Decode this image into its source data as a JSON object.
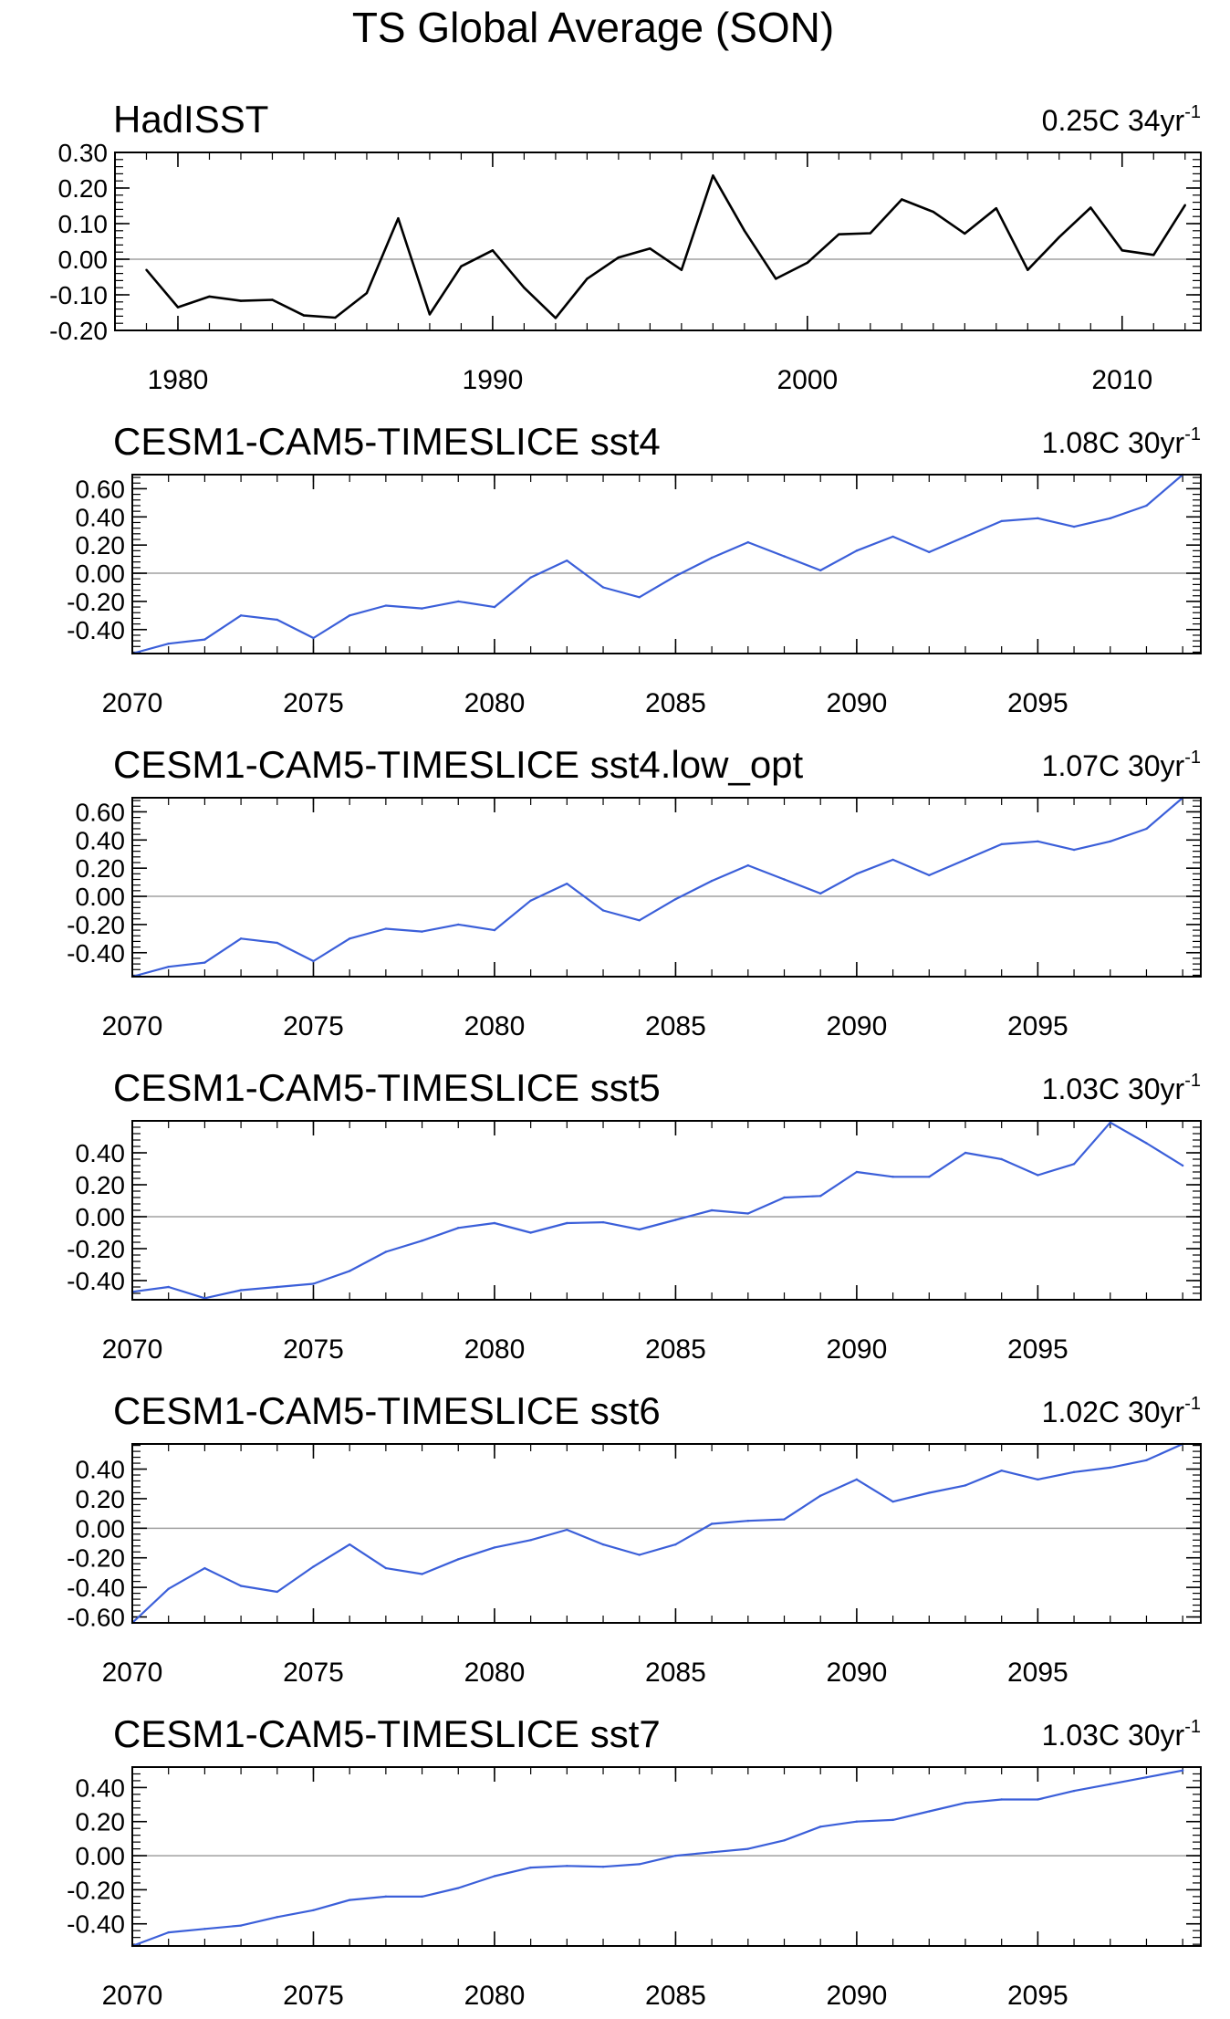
{
  "figure_title": "TS Global Average (SON)",
  "colors": {
    "obs_line": "#000000",
    "model_line": "#3b5fd9",
    "axis": "#000000",
    "zero_line": "#a0a0a0"
  },
  "chart_data": [
    {
      "type": "line",
      "title": "HadISST",
      "trend_value": "0.25C 34yr",
      "trend_exp": "-1",
      "color_key": "obs_line",
      "xlim": [
        1978.0,
        2012.5
      ],
      "ylim": [
        -0.2,
        0.3
      ],
      "yticks": [
        -0.2,
        -0.1,
        0.0,
        0.1,
        0.2,
        0.3
      ],
      "ytick_labels": [
        "-0.20",
        "-0.10",
        "0.00",
        "0.10",
        "0.20",
        "0.30"
      ],
      "xticks": [
        1980,
        1990,
        2000,
        2010
      ],
      "xtick_labels": [
        "1980",
        "1990",
        "2000",
        "2010"
      ],
      "x": [
        1979,
        1980,
        1981,
        1982,
        1983,
        1984,
        1985,
        1986,
        1987,
        1988,
        1989,
        1990,
        1991,
        1992,
        1993,
        1994,
        1995,
        1996,
        1997,
        1998,
        1999,
        2000,
        2001,
        2002,
        2003,
        2004,
        2005,
        2006,
        2007,
        2008,
        2009,
        2010,
        2011,
        2012
      ],
      "y": [
        -0.03,
        -0.135,
        -0.105,
        -0.117,
        -0.114,
        -0.158,
        -0.164,
        -0.095,
        0.115,
        -0.155,
        -0.02,
        0.025,
        -0.08,
        -0.165,
        -0.055,
        0.005,
        0.03,
        -0.03,
        0.235,
        0.08,
        -0.055,
        -0.01,
        0.07,
        0.073,
        0.168,
        0.133,
        0.072,
        0.143,
        -0.03,
        0.062,
        0.145,
        0.025,
        0.012,
        0.152
      ]
    },
    {
      "type": "line",
      "title": "CESM1-CAM5-TIMESLICE sst4",
      "trend_value": "1.08C 30yr",
      "trend_exp": "-1",
      "color_key": "model_line",
      "xlim": [
        2070,
        2099.5
      ],
      "ylim": [
        -0.57,
        0.7
      ],
      "yticks": [
        -0.4,
        -0.2,
        0.0,
        0.2,
        0.4,
        0.6
      ],
      "ytick_labels": [
        "-0.40",
        "-0.20",
        "0.00",
        "0.20",
        "0.40",
        "0.60"
      ],
      "xticks": [
        2070,
        2075,
        2080,
        2085,
        2090,
        2095
      ],
      "xtick_labels": [
        "2070",
        "2075",
        "2080",
        "2085",
        "2090",
        "2095"
      ],
      "x": [
        2070,
        2071,
        2072,
        2073,
        2074,
        2075,
        2076,
        2077,
        2078,
        2079,
        2080,
        2081,
        2082,
        2083,
        2084,
        2085,
        2086,
        2087,
        2088,
        2089,
        2090,
        2091,
        2092,
        2093,
        2094,
        2095,
        2096,
        2097,
        2098,
        2099
      ],
      "y": [
        -0.57,
        -0.5,
        -0.47,
        -0.3,
        -0.33,
        -0.46,
        -0.3,
        -0.23,
        -0.25,
        -0.2,
        -0.24,
        -0.03,
        0.09,
        -0.1,
        -0.17,
        -0.02,
        0.11,
        0.22,
        0.12,
        0.02,
        0.16,
        0.26,
        0.15,
        0.26,
        0.37,
        0.39,
        0.33,
        0.39,
        0.48,
        0.7
      ]
    },
    {
      "type": "line",
      "title": "CESM1-CAM5-TIMESLICE sst4.low_opt",
      "trend_value": "1.07C 30yr",
      "trend_exp": "-1",
      "color_key": "model_line",
      "xlim": [
        2070,
        2099.5
      ],
      "ylim": [
        -0.57,
        0.7
      ],
      "yticks": [
        -0.4,
        -0.2,
        0.0,
        0.2,
        0.4,
        0.6
      ],
      "ytick_labels": [
        "-0.40",
        "-0.20",
        "0.00",
        "0.20",
        "0.40",
        "0.60"
      ],
      "xticks": [
        2070,
        2075,
        2080,
        2085,
        2090,
        2095
      ],
      "xtick_labels": [
        "2070",
        "2075",
        "2080",
        "2085",
        "2090",
        "2095"
      ],
      "x": [
        2070,
        2071,
        2072,
        2073,
        2074,
        2075,
        2076,
        2077,
        2078,
        2079,
        2080,
        2081,
        2082,
        2083,
        2084,
        2085,
        2086,
        2087,
        2088,
        2089,
        2090,
        2091,
        2092,
        2093,
        2094,
        2095,
        2096,
        2097,
        2098,
        2099
      ],
      "y": [
        -0.57,
        -0.5,
        -0.47,
        -0.3,
        -0.33,
        -0.46,
        -0.3,
        -0.23,
        -0.25,
        -0.2,
        -0.24,
        -0.03,
        0.09,
        -0.1,
        -0.17,
        -0.02,
        0.11,
        0.22,
        0.12,
        0.02,
        0.16,
        0.26,
        0.15,
        0.26,
        0.37,
        0.39,
        0.33,
        0.39,
        0.48,
        0.7
      ]
    },
    {
      "type": "line",
      "title": "CESM1-CAM5-TIMESLICE sst5",
      "trend_value": "1.03C 30yr",
      "trend_exp": "-1",
      "color_key": "model_line",
      "xlim": [
        2070,
        2099.5
      ],
      "ylim": [
        -0.52,
        0.6
      ],
      "yticks": [
        -0.4,
        -0.2,
        0.0,
        0.2,
        0.4
      ],
      "ytick_labels": [
        "-0.40",
        "-0.20",
        "0.00",
        "0.20",
        "0.40"
      ],
      "xticks": [
        2070,
        2075,
        2080,
        2085,
        2090,
        2095
      ],
      "xtick_labels": [
        "2070",
        "2075",
        "2080",
        "2085",
        "2090",
        "2095"
      ],
      "x": [
        2070,
        2071,
        2072,
        2073,
        2074,
        2075,
        2076,
        2077,
        2078,
        2079,
        2080,
        2081,
        2082,
        2083,
        2084,
        2085,
        2086,
        2087,
        2088,
        2089,
        2090,
        2091,
        2092,
        2093,
        2094,
        2095,
        2096,
        2097,
        2098,
        2099
      ],
      "y": [
        -0.47,
        -0.44,
        -0.51,
        -0.46,
        -0.44,
        -0.42,
        -0.34,
        -0.22,
        -0.15,
        -0.07,
        -0.04,
        -0.1,
        -0.04,
        -0.035,
        -0.08,
        -0.02,
        0.04,
        0.02,
        0.12,
        0.13,
        0.28,
        0.25,
        0.25,
        0.4,
        0.36,
        0.26,
        0.33,
        0.59,
        0.46,
        0.32
      ]
    },
    {
      "type": "line",
      "title": "CESM1-CAM5-TIMESLICE sst6",
      "trend_value": "1.02C 30yr",
      "trend_exp": "-1",
      "color_key": "model_line",
      "xlim": [
        2070,
        2099.5
      ],
      "ylim": [
        -0.64,
        0.57
      ],
      "yticks": [
        -0.6,
        -0.4,
        -0.2,
        0.0,
        0.2,
        0.4
      ],
      "ytick_labels": [
        "-0.60",
        "-0.40",
        "-0.20",
        "0.00",
        "0.20",
        "0.40"
      ],
      "xticks": [
        2070,
        2075,
        2080,
        2085,
        2090,
        2095
      ],
      "xtick_labels": [
        "2070",
        "2075",
        "2080",
        "2085",
        "2090",
        "2095"
      ],
      "x": [
        2070,
        2071,
        2072,
        2073,
        2074,
        2075,
        2076,
        2077,
        2078,
        2079,
        2080,
        2081,
        2082,
        2083,
        2084,
        2085,
        2086,
        2087,
        2088,
        2089,
        2090,
        2091,
        2092,
        2093,
        2094,
        2095,
        2096,
        2097,
        2098,
        2099
      ],
      "y": [
        -0.64,
        -0.41,
        -0.27,
        -0.39,
        -0.43,
        -0.26,
        -0.11,
        -0.27,
        -0.31,
        -0.21,
        -0.13,
        -0.08,
        -0.01,
        -0.11,
        -0.18,
        -0.11,
        0.03,
        0.05,
        0.06,
        0.22,
        0.33,
        0.18,
        0.24,
        0.29,
        0.39,
        0.33,
        0.38,
        0.41,
        0.46,
        0.57
      ]
    },
    {
      "type": "line",
      "title": "CESM1-CAM5-TIMESLICE sst7",
      "trend_value": "1.03C 30yr",
      "trend_exp": "-1",
      "color_key": "model_line",
      "xlim": [
        2070,
        2099.5
      ],
      "ylim": [
        -0.53,
        0.52
      ],
      "yticks": [
        -0.4,
        -0.2,
        0.0,
        0.2,
        0.4
      ],
      "ytick_labels": [
        "-0.40",
        "-0.20",
        "0.00",
        "0.20",
        "0.40"
      ],
      "xticks": [
        2070,
        2075,
        2080,
        2085,
        2090,
        2095
      ],
      "xtick_labels": [
        "2070",
        "2075",
        "2080",
        "2085",
        "2090",
        "2095"
      ],
      "x": [
        2070,
        2071,
        2072,
        2073,
        2074,
        2075,
        2076,
        2077,
        2078,
        2079,
        2080,
        2081,
        2082,
        2083,
        2084,
        2085,
        2086,
        2087,
        2088,
        2089,
        2090,
        2091,
        2092,
        2093,
        2094,
        2095,
        2096,
        2097,
        2098,
        2099
      ],
      "y": [
        -0.53,
        -0.45,
        -0.43,
        -0.41,
        -0.36,
        -0.32,
        -0.26,
        -0.24,
        -0.24,
        -0.19,
        -0.12,
        -0.07,
        -0.06,
        -0.065,
        -0.05,
        0.0,
        0.02,
        0.04,
        0.09,
        0.17,
        0.2,
        0.21,
        0.26,
        0.31,
        0.33,
        0.33,
        0.38,
        0.42,
        0.46,
        0.5
      ]
    }
  ]
}
